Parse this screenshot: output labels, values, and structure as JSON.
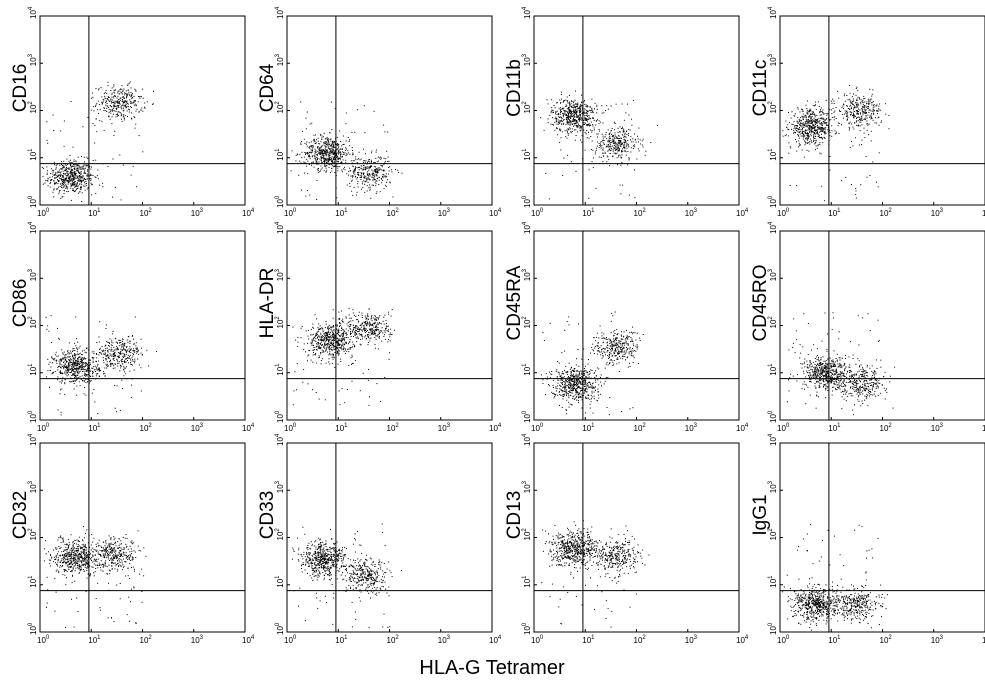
{
  "figure": {
    "shared_xlabel": "HLA-G Tetramer",
    "tick_base": "10",
    "tick_exponents": [
      "0",
      "1",
      "2",
      "3",
      "4"
    ],
    "dot_color": "#000000"
  },
  "chart_data": [
    {
      "type": "scatter",
      "ylabel": "CD16",
      "xlabel": "HLA-G Tetramer",
      "xscale": "log",
      "yscale": "log",
      "xlim": [
        1,
        10000
      ],
      "ylim": [
        1,
        10000
      ],
      "grid": false,
      "quadrant_gates": {
        "x": 9,
        "y": 7.5
      },
      "clusters": [
        {
          "x_center": 4,
          "y_center": 4,
          "density": "high"
        },
        {
          "x_center": 35,
          "y_center": 150,
          "density": "medium"
        }
      ]
    },
    {
      "type": "scatter",
      "ylabel": "CD64",
      "xlabel": "HLA-G Tetramer",
      "xscale": "log",
      "yscale": "log",
      "xlim": [
        1,
        10000
      ],
      "ylim": [
        1,
        10000
      ],
      "grid": false,
      "quadrant_gates": {
        "x": 9,
        "y": 7.5
      },
      "clusters": [
        {
          "x_center": 6,
          "y_center": 13,
          "density": "high"
        },
        {
          "x_center": 40,
          "y_center": 5,
          "density": "medium"
        }
      ]
    },
    {
      "type": "scatter",
      "ylabel": "CD11b",
      "xlabel": "HLA-G Tetramer",
      "xscale": "log",
      "yscale": "log",
      "xlim": [
        1,
        10000
      ],
      "ylim": [
        1,
        10000
      ],
      "grid": false,
      "quadrant_gates": {
        "x": 9,
        "y": 7.5
      },
      "clusters": [
        {
          "x_center": 6,
          "y_center": 80,
          "density": "high"
        },
        {
          "x_center": 40,
          "y_center": 20,
          "density": "medium"
        }
      ]
    },
    {
      "type": "scatter",
      "ylabel": "CD11c",
      "xlabel": "HLA-G Tetramer",
      "xscale": "log",
      "yscale": "log",
      "xlim": [
        1,
        10000
      ],
      "ylim": [
        1,
        10000
      ],
      "grid": false,
      "quadrant_gates": {
        "x": 9,
        "y": 7.5
      },
      "clusters": [
        {
          "x_center": 4,
          "y_center": 45,
          "density": "high"
        },
        {
          "x_center": 35,
          "y_center": 100,
          "density": "medium"
        }
      ]
    },
    {
      "type": "scatter",
      "ylabel": "CD86",
      "xlabel": "HLA-G Tetramer",
      "xscale": "log",
      "yscale": "log",
      "xlim": [
        1,
        10000
      ],
      "ylim": [
        1,
        10000
      ],
      "grid": false,
      "quadrant_gates": {
        "x": 9,
        "y": 7.5
      },
      "clusters": [
        {
          "x_center": 5,
          "y_center": 14,
          "density": "high"
        },
        {
          "x_center": 35,
          "y_center": 25,
          "density": "medium"
        }
      ]
    },
    {
      "type": "scatter",
      "ylabel": "HLA-DR",
      "xlabel": "HLA-G Tetramer",
      "xscale": "log",
      "yscale": "log",
      "xlim": [
        1,
        10000
      ],
      "ylim": [
        1,
        10000
      ],
      "grid": false,
      "quadrant_gates": {
        "x": 9,
        "y": 7.5
      },
      "clusters": [
        {
          "x_center": 7,
          "y_center": 50,
          "density": "high"
        },
        {
          "x_center": 40,
          "y_center": 90,
          "density": "medium"
        }
      ]
    },
    {
      "type": "scatter",
      "ylabel": "CD45RA",
      "xlabel": "HLA-G Tetramer",
      "xscale": "log",
      "yscale": "log",
      "xlim": [
        1,
        10000
      ],
      "ylim": [
        1,
        10000
      ],
      "grid": false,
      "quadrant_gates": {
        "x": 9,
        "y": 7.5
      },
      "clusters": [
        {
          "x_center": 6,
          "y_center": 6,
          "density": "high"
        },
        {
          "x_center": 40,
          "y_center": 35,
          "density": "medium"
        }
      ]
    },
    {
      "type": "scatter",
      "ylabel": "CD45RO",
      "xlabel": "HLA-G Tetramer",
      "xscale": "log",
      "yscale": "log",
      "xlim": [
        1,
        10000
      ],
      "ylim": [
        1,
        10000
      ],
      "grid": false,
      "quadrant_gates": {
        "x": 9,
        "y": 7.5
      },
      "clusters": [
        {
          "x_center": 8,
          "y_center": 10,
          "density": "high"
        },
        {
          "x_center": 40,
          "y_center": 6,
          "density": "medium"
        }
      ]
    },
    {
      "type": "scatter",
      "ylabel": "CD32",
      "xlabel": "HLA-G Tetramer",
      "xscale": "log",
      "yscale": "log",
      "xlim": [
        1,
        10000
      ],
      "ylim": [
        1,
        10000
      ],
      "grid": false,
      "quadrant_gates": {
        "x": 9,
        "y": 7.5
      },
      "clusters": [
        {
          "x_center": 5,
          "y_center": 40,
          "density": "high"
        },
        {
          "x_center": 30,
          "y_center": 45,
          "density": "medium"
        }
      ]
    },
    {
      "type": "scatter",
      "ylabel": "CD33",
      "xlabel": "HLA-G Tetramer",
      "xscale": "log",
      "yscale": "log",
      "xlim": [
        1,
        10000
      ],
      "ylim": [
        1,
        10000
      ],
      "grid": false,
      "quadrant_gates": {
        "x": 9,
        "y": 7.5
      },
      "clusters": [
        {
          "x_center": 5,
          "y_center": 35,
          "density": "high"
        },
        {
          "x_center": 35,
          "y_center": 15,
          "density": "medium"
        }
      ]
    },
    {
      "type": "scatter",
      "ylabel": "CD13",
      "xlabel": "HLA-G Tetramer",
      "xscale": "log",
      "yscale": "log",
      "xlim": [
        1,
        10000
      ],
      "ylim": [
        1,
        10000
      ],
      "grid": false,
      "quadrant_gates": {
        "x": 9,
        "y": 7.5
      },
      "clusters": [
        {
          "x_center": 6,
          "y_center": 60,
          "density": "high"
        },
        {
          "x_center": 40,
          "y_center": 40,
          "density": "medium"
        }
      ]
    },
    {
      "type": "scatter",
      "ylabel": "IgG1",
      "xlabel": "HLA-G Tetramer",
      "xscale": "log",
      "yscale": "log",
      "xlim": [
        1,
        10000
      ],
      "ylim": [
        1,
        10000
      ],
      "grid": false,
      "quadrant_gates": {
        "x": 9,
        "y": 7.5
      },
      "clusters": [
        {
          "x_center": 5,
          "y_center": 4,
          "density": "high"
        },
        {
          "x_center": 30,
          "y_center": 4,
          "density": "medium"
        }
      ]
    }
  ]
}
